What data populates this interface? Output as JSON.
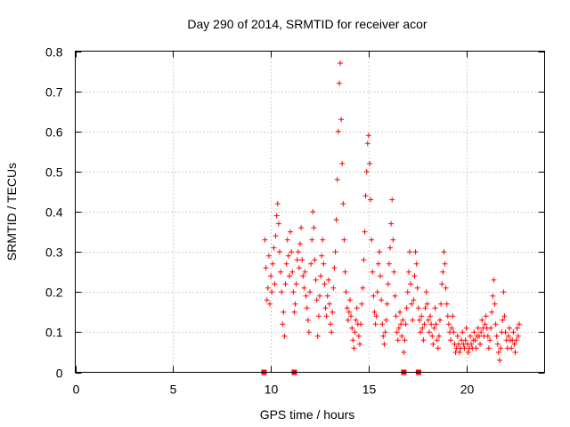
{
  "chart_data": {
    "type": "scatter",
    "title": "Day 290 of 2014, SRMTID for receiver acor",
    "xlabel": "GPS time / hours",
    "ylabel": "SRMTID / TECUs",
    "xlim": [
      0,
      24
    ],
    "ylim": [
      0,
      0.8
    ],
    "xticks": [
      0,
      5,
      10,
      15,
      20
    ],
    "yticks": [
      0,
      0.1,
      0.2,
      0.3,
      0.4,
      0.5,
      0.6,
      0.7,
      0.8
    ],
    "grid": true,
    "marker": "+",
    "color": "#ff0000",
    "series": [
      {
        "name": "SRMTID",
        "points": [
          [
            9.7,
            0.33
          ],
          [
            9.75,
            0.26
          ],
          [
            9.8,
            0.18
          ],
          [
            9.85,
            0.21
          ],
          [
            9.9,
            0.29
          ],
          [
            9.95,
            0.17
          ],
          [
            10.0,
            0.24
          ],
          [
            10.05,
            0.2
          ],
          [
            10.1,
            0.27
          ],
          [
            10.15,
            0.31
          ],
          [
            10.2,
            0.22
          ],
          [
            10.25,
            0.34
          ],
          [
            10.3,
            0.39
          ],
          [
            10.35,
            0.42
          ],
          [
            10.4,
            0.37
          ],
          [
            10.45,
            0.3
          ],
          [
            10.5,
            0.25
          ],
          [
            10.55,
            0.2
          ],
          [
            10.6,
            0.12
          ],
          [
            10.65,
            0.15
          ],
          [
            10.7,
            0.09
          ],
          [
            10.75,
            0.22
          ],
          [
            10.8,
            0.27
          ],
          [
            10.85,
            0.33
          ],
          [
            10.9,
            0.29
          ],
          [
            10.95,
            0.24
          ],
          [
            11.0,
            0.35
          ],
          [
            11.05,
            0.3
          ],
          [
            11.1,
            0.25
          ],
          [
            11.15,
            0.2
          ],
          [
            11.2,
            0.15
          ],
          [
            11.25,
            0.17
          ],
          [
            11.3,
            0.22
          ],
          [
            11.35,
            0.28
          ],
          [
            11.4,
            0.3
          ],
          [
            11.45,
            0.26
          ],
          [
            11.5,
            0.32
          ],
          [
            11.55,
            0.36
          ],
          [
            11.6,
            0.28
          ],
          [
            11.65,
            0.24
          ],
          [
            11.7,
            0.21
          ],
          [
            11.75,
            0.25
          ],
          [
            11.8,
            0.19
          ],
          [
            11.85,
            0.16
          ],
          [
            11.9,
            0.13
          ],
          [
            11.95,
            0.1
          ],
          [
            12.0,
            0.2
          ],
          [
            12.05,
            0.27
          ],
          [
            12.1,
            0.33
          ],
          [
            12.15,
            0.4
          ],
          [
            12.2,
            0.36
          ],
          [
            12.25,
            0.28
          ],
          [
            12.3,
            0.23
          ],
          [
            12.35,
            0.18
          ],
          [
            12.4,
            0.09
          ],
          [
            12.45,
            0.14
          ],
          [
            12.5,
            0.19
          ],
          [
            12.55,
            0.24
          ],
          [
            12.6,
            0.29
          ],
          [
            12.65,
            0.33
          ],
          [
            12.7,
            0.27
          ],
          [
            12.75,
            0.22
          ],
          [
            12.8,
            0.16
          ],
          [
            12.85,
            0.14
          ],
          [
            12.9,
            0.19
          ],
          [
            12.95,
            0.23
          ],
          [
            13.0,
            0.17
          ],
          [
            13.05,
            0.12
          ],
          [
            13.1,
            0.1
          ],
          [
            13.15,
            0.15
          ],
          [
            13.2,
            0.21
          ],
          [
            13.25,
            0.26
          ],
          [
            13.3,
            0.3
          ],
          [
            13.35,
            0.38
          ],
          [
            13.4,
            0.48
          ],
          [
            13.45,
            0.6
          ],
          [
            13.5,
            0.72
          ],
          [
            13.55,
            0.77
          ],
          [
            13.6,
            0.63
          ],
          [
            13.65,
            0.52
          ],
          [
            13.7,
            0.42
          ],
          [
            13.75,
            0.33
          ],
          [
            13.8,
            0.25
          ],
          [
            13.85,
            0.2
          ],
          [
            13.9,
            0.16
          ],
          [
            13.95,
            0.13
          ],
          [
            14.0,
            0.15
          ],
          [
            14.05,
            0.18
          ],
          [
            14.1,
            0.14
          ],
          [
            14.15,
            0.11
          ],
          [
            14.2,
            0.08
          ],
          [
            14.25,
            0.06
          ],
          [
            14.3,
            0.1
          ],
          [
            14.35,
            0.13
          ],
          [
            14.4,
            0.16
          ],
          [
            14.45,
            0.12
          ],
          [
            14.5,
            0.09
          ],
          [
            14.55,
            0.07
          ],
          [
            14.6,
            0.12
          ],
          [
            14.65,
            0.17
          ],
          [
            14.7,
            0.21
          ],
          [
            14.75,
            0.28
          ],
          [
            14.8,
            0.35
          ],
          [
            14.85,
            0.44
          ],
          [
            14.9,
            0.5
          ],
          [
            14.95,
            0.57
          ],
          [
            15.0,
            0.59
          ],
          [
            15.05,
            0.52
          ],
          [
            15.1,
            0.43
          ],
          [
            15.15,
            0.33
          ],
          [
            15.2,
            0.25
          ],
          [
            15.25,
            0.19
          ],
          [
            15.3,
            0.15
          ],
          [
            15.35,
            0.12
          ],
          [
            15.4,
            0.14
          ],
          [
            15.45,
            0.2
          ],
          [
            15.5,
            0.27
          ],
          [
            15.55,
            0.3
          ],
          [
            15.6,
            0.24
          ],
          [
            15.65,
            0.18
          ],
          [
            15.7,
            0.12
          ],
          [
            15.75,
            0.09
          ],
          [
            15.8,
            0.07
          ],
          [
            15.85,
            0.1
          ],
          [
            15.9,
            0.13
          ],
          [
            15.95,
            0.17
          ],
          [
            16.0,
            0.22
          ],
          [
            16.05,
            0.27
          ],
          [
            16.1,
            0.31
          ],
          [
            16.15,
            0.37
          ],
          [
            16.2,
            0.43
          ],
          [
            16.25,
            0.33
          ],
          [
            16.3,
            0.25
          ],
          [
            16.35,
            0.19
          ],
          [
            16.4,
            0.14
          ],
          [
            16.45,
            0.1
          ],
          [
            16.5,
            0.08
          ],
          [
            16.55,
            0.11
          ],
          [
            16.6,
            0.15
          ],
          [
            16.65,
            0.12
          ],
          [
            16.7,
            0.09
          ],
          [
            16.75,
            0.13
          ],
          [
            16.8,
            0.05
          ],
          [
            16.85,
            0.08
          ],
          [
            16.9,
            0.12
          ],
          [
            16.95,
            0.16
          ],
          [
            17.0,
            0.2
          ],
          [
            17.05,
            0.25
          ],
          [
            17.1,
            0.3
          ],
          [
            17.15,
            0.22
          ],
          [
            17.2,
            0.17
          ],
          [
            17.25,
            0.13
          ],
          [
            17.3,
            0.18
          ],
          [
            17.35,
            0.24
          ],
          [
            17.4,
            0.3
          ],
          [
            17.45,
            0.27
          ],
          [
            17.5,
            0.21
          ],
          [
            17.55,
            0.16
          ],
          [
            17.6,
            0.13
          ],
          [
            17.65,
            0.1
          ],
          [
            17.7,
            0.14
          ],
          [
            17.75,
            0.11
          ],
          [
            17.8,
            0.08
          ],
          [
            17.85,
            0.12
          ],
          [
            17.9,
            0.16
          ],
          [
            17.95,
            0.2
          ],
          [
            18.0,
            0.17
          ],
          [
            18.05,
            0.13
          ],
          [
            18.1,
            0.1
          ],
          [
            18.15,
            0.14
          ],
          [
            18.2,
            0.12
          ],
          [
            18.25,
            0.09
          ],
          [
            18.3,
            0.07
          ],
          [
            18.35,
            0.11
          ],
          [
            18.4,
            0.16
          ],
          [
            18.45,
            0.12
          ],
          [
            18.5,
            0.08
          ],
          [
            18.55,
            0.06
          ],
          [
            18.6,
            0.09
          ],
          [
            18.65,
            0.13
          ],
          [
            18.7,
            0.17
          ],
          [
            18.75,
            0.22
          ],
          [
            18.8,
            0.25
          ],
          [
            18.85,
            0.3
          ],
          [
            18.9,
            0.27
          ],
          [
            18.95,
            0.21
          ],
          [
            19.0,
            0.17
          ],
          [
            19.05,
            0.14
          ],
          [
            19.1,
            0.12
          ],
          [
            19.15,
            0.1
          ],
          [
            19.2,
            0.08
          ],
          [
            19.25,
            0.11
          ],
          [
            19.3,
            0.14
          ],
          [
            19.35,
            0.1
          ],
          [
            19.4,
            0.07
          ],
          [
            19.45,
            0.05
          ],
          [
            19.5,
            0.06
          ],
          [
            19.55,
            0.09
          ],
          [
            19.6,
            0.07
          ],
          [
            19.65,
            0.05
          ],
          [
            19.7,
            0.06
          ],
          [
            19.75,
            0.08
          ],
          [
            19.8,
            0.1
          ],
          [
            19.85,
            0.07
          ],
          [
            19.9,
            0.06
          ],
          [
            19.95,
            0.08
          ],
          [
            20.0,
            0.11
          ],
          [
            20.05,
            0.07
          ],
          [
            20.1,
            0.05
          ],
          [
            20.15,
            0.06
          ],
          [
            20.2,
            0.09
          ],
          [
            20.25,
            0.07
          ],
          [
            20.3,
            0.06
          ],
          [
            20.35,
            0.08
          ],
          [
            20.4,
            0.1
          ],
          [
            20.45,
            0.08
          ],
          [
            20.5,
            0.06
          ],
          [
            20.55,
            0.09
          ],
          [
            20.6,
            0.11
          ],
          [
            20.65,
            0.09
          ],
          [
            20.7,
            0.07
          ],
          [
            20.75,
            0.1
          ],
          [
            20.8,
            0.13
          ],
          [
            20.85,
            0.11
          ],
          [
            20.9,
            0.09
          ],
          [
            20.95,
            0.12
          ],
          [
            21.0,
            0.14
          ],
          [
            21.05,
            0.11
          ],
          [
            21.1,
            0.09
          ],
          [
            21.15,
            0.06
          ],
          [
            21.2,
            0.08
          ],
          [
            21.25,
            0.11
          ],
          [
            21.3,
            0.15
          ],
          [
            21.35,
            0.19
          ],
          [
            21.4,
            0.23
          ],
          [
            21.45,
            0.17
          ],
          [
            21.5,
            0.12
          ],
          [
            21.55,
            0.09
          ],
          [
            21.6,
            0.07
          ],
          [
            21.65,
            0.05
          ],
          [
            21.7,
            0.03
          ],
          [
            21.75,
            0.06
          ],
          [
            21.8,
            0.1
          ],
          [
            21.85,
            0.13
          ],
          [
            21.9,
            0.2
          ],
          [
            21.95,
            0.14
          ],
          [
            22.0,
            0.1
          ],
          [
            22.05,
            0.08
          ],
          [
            22.1,
            0.06
          ],
          [
            22.15,
            0.09
          ],
          [
            22.2,
            0.11
          ],
          [
            22.25,
            0.08
          ],
          [
            22.3,
            0.06
          ],
          [
            22.35,
            0.08
          ],
          [
            22.4,
            0.1
          ],
          [
            22.45,
            0.07
          ],
          [
            22.5,
            0.05
          ],
          [
            22.55,
            0.08
          ],
          [
            22.6,
            0.11
          ],
          [
            22.65,
            0.09
          ],
          [
            22.7,
            0.12
          ]
        ]
      }
    ],
    "zero_markers": [
      9.65,
      11.2,
      16.8,
      17.55
    ]
  }
}
